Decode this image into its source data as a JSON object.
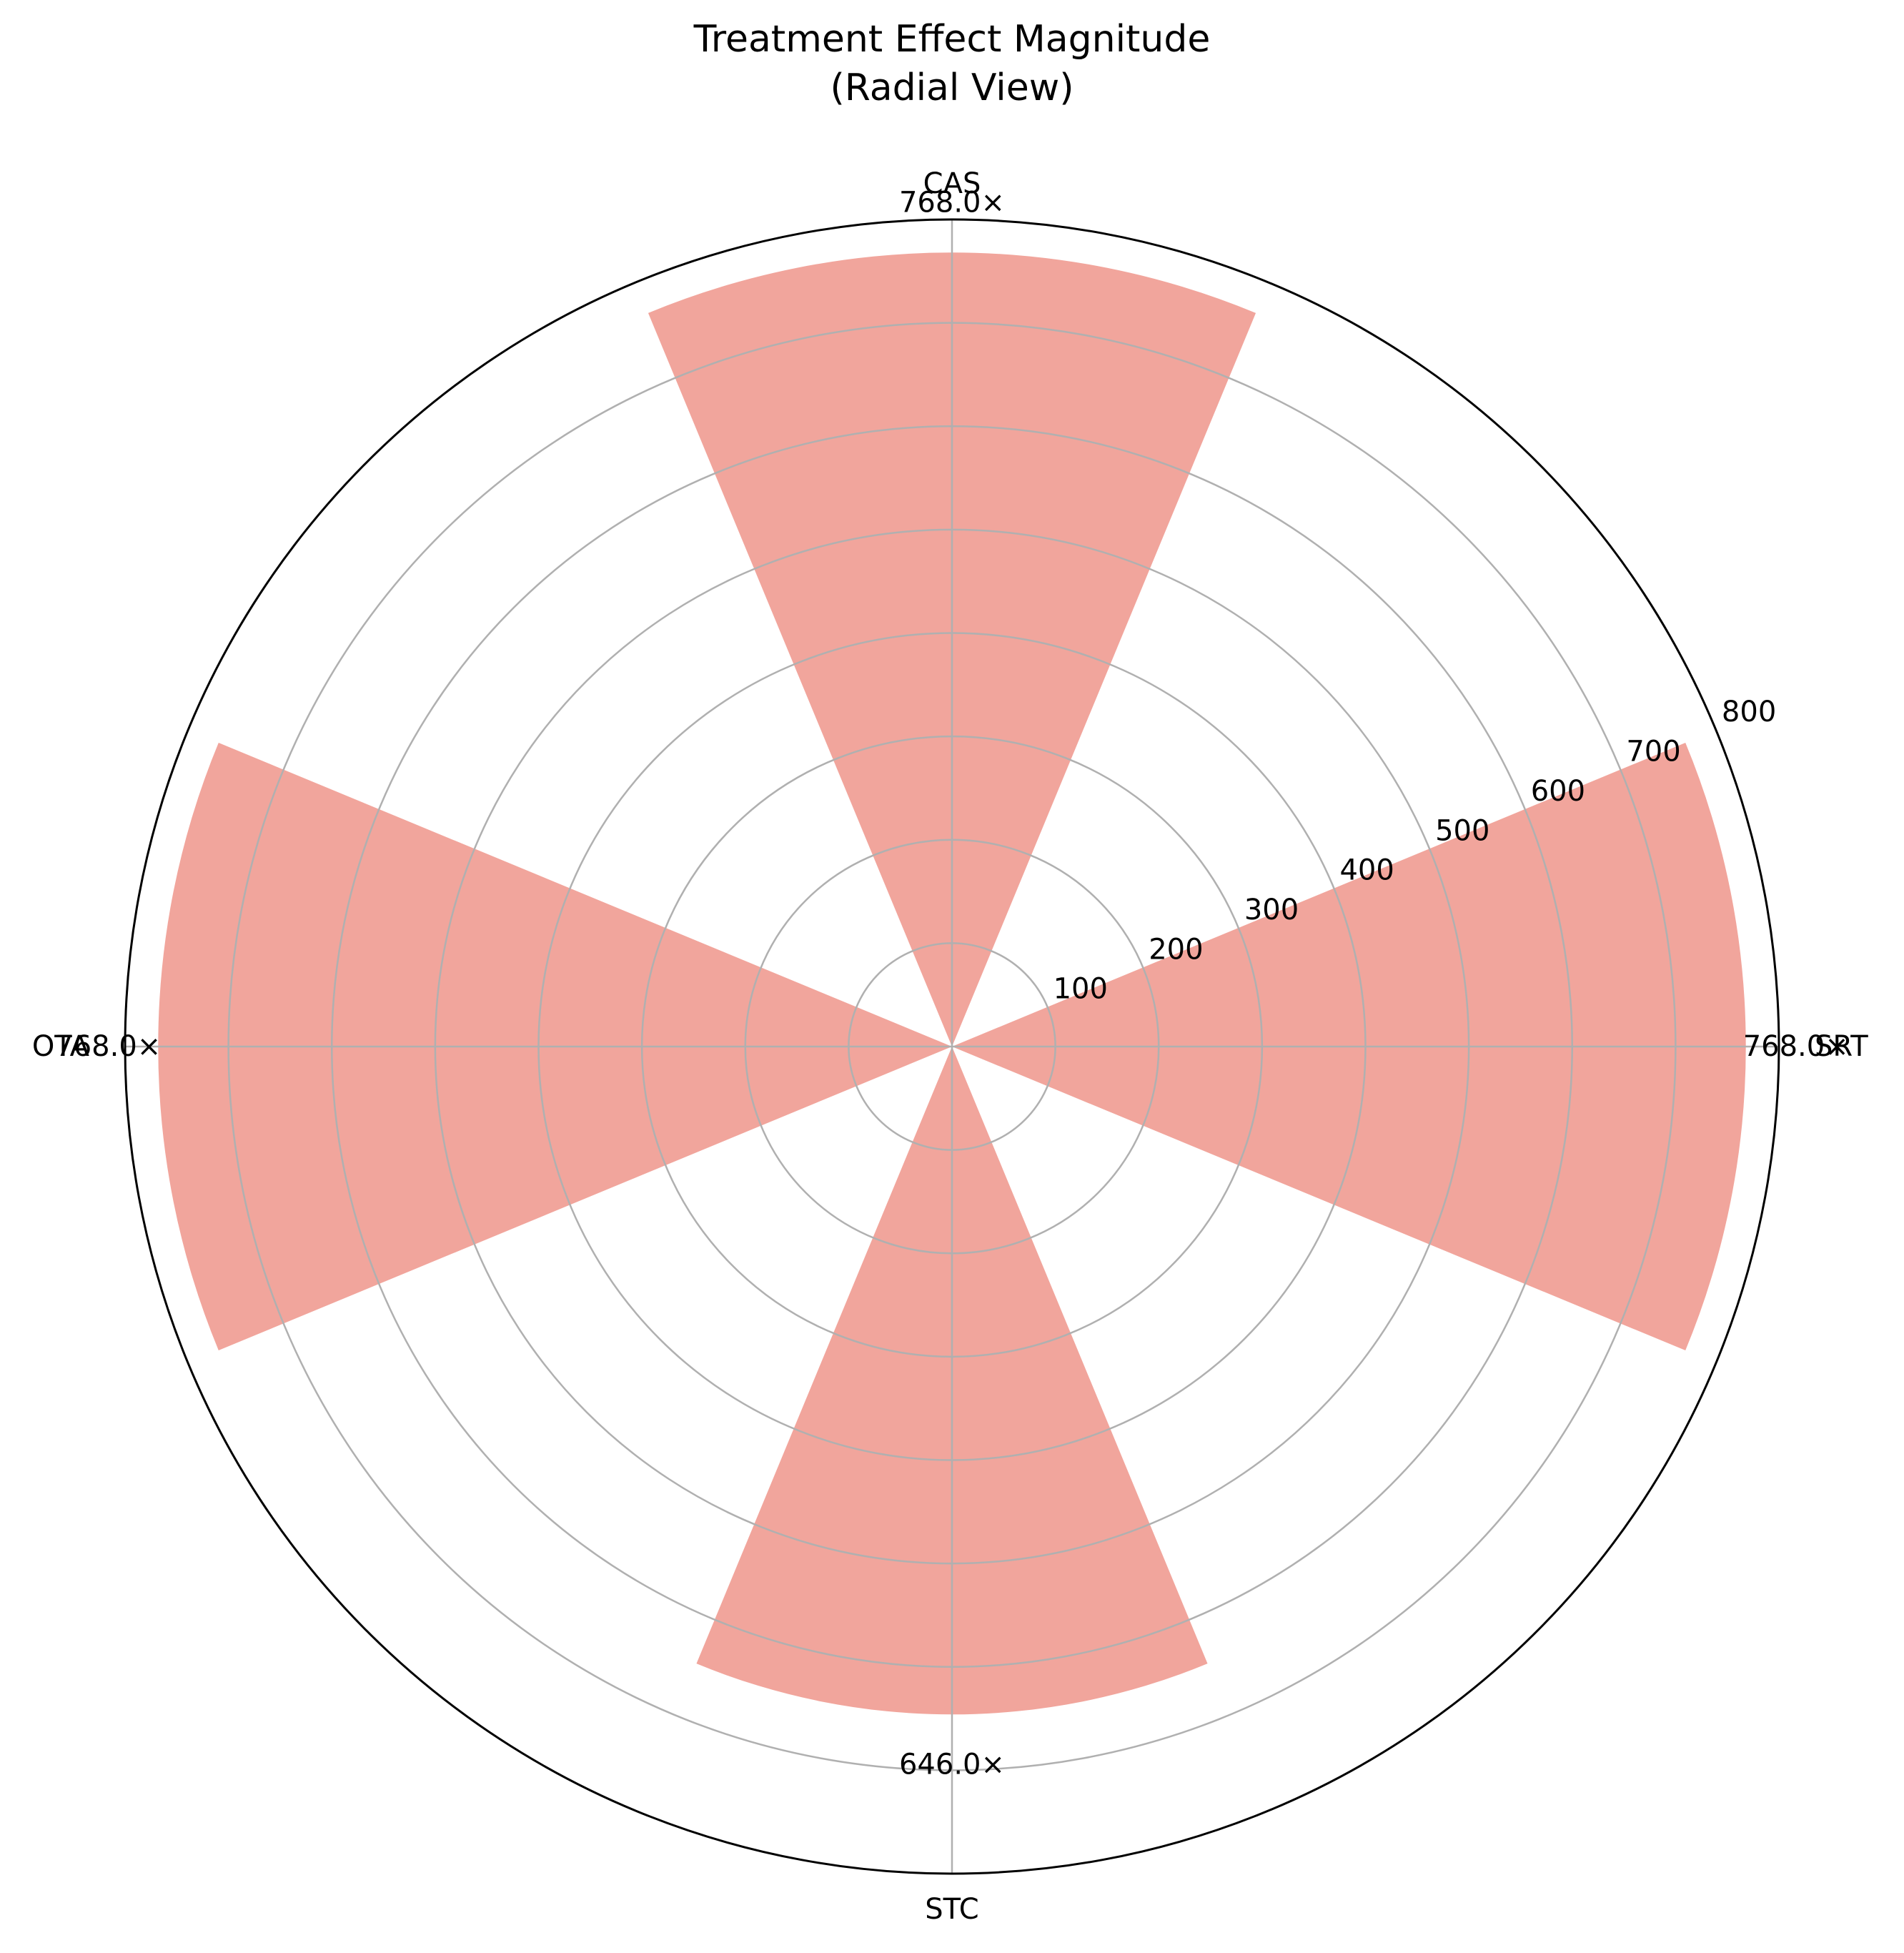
{
  "chart_data": {
    "type": "bar",
    "projection": "polar",
    "title": [
      "Treatment Effect Magnitude",
      "(Radial View)"
    ],
    "categories": [
      "SRT",
      "CAS",
      "OTA",
      "STC"
    ],
    "values": [
      768.0,
      768.0,
      768.0,
      646.0
    ],
    "value_labels": [
      "768.0×",
      "768.0×",
      "768.0×",
      "646.0×"
    ],
    "theta_degrees": [
      0,
      90,
      180,
      270
    ],
    "bar_width_degrees": 45,
    "rlim": [
      0,
      800
    ],
    "r_ticks": [
      100,
      200,
      300,
      400,
      500,
      600,
      700,
      800
    ],
    "grid": true,
    "colors": {
      "bar": "#f1a59c",
      "grid": "#b0b0b0",
      "spine": "#000000"
    }
  }
}
